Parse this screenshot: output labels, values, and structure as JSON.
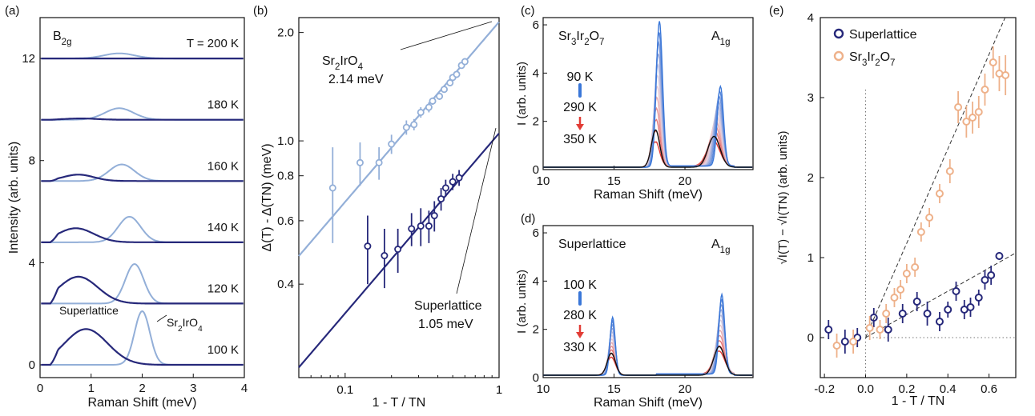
{
  "colors": {
    "dark": "#26287a",
    "light": "#93afd8",
    "orange": "#eeb18a",
    "blue": "#3a77d8",
    "red": "#e23c35",
    "black": "#111111"
  },
  "chart_data": [
    {
      "panel": "(a)",
      "type": "line",
      "xlabel": "Raman Shift (meV)",
      "ylabel": "Intensity (arb. units)",
      "xlim": [
        0,
        4
      ],
      "ylim": [
        -0.5,
        13.6
      ],
      "xticks": [
        "0",
        "1",
        "2",
        "3",
        "4"
      ],
      "yticks": [
        "0",
        "4",
        "8",
        "12"
      ],
      "symmetry_label": "B2g",
      "series_labels": [
        "Superlattice",
        "Sr2IrO4"
      ],
      "traces": [
        {
          "temp": "T = 200 K",
          "offset": 12.0,
          "light": {
            "center": 1.55,
            "amp": 0.2,
            "width": 0.3
          },
          "dark": {
            "center": 0.8,
            "amp": 0.0,
            "width": 0.3
          }
        },
        {
          "temp": "180 K",
          "offset": 9.6,
          "light": {
            "center": 1.55,
            "amp": 0.45,
            "width": 0.28
          },
          "dark": {
            "center": 0.8,
            "amp": 0.05,
            "width": 0.3
          }
        },
        {
          "temp": "160 K",
          "offset": 7.2,
          "light": {
            "center": 1.6,
            "amp": 0.65,
            "width": 0.25
          },
          "dark": {
            "center": 0.75,
            "amp": 0.25,
            "width": 0.3
          }
        },
        {
          "temp": "140 K",
          "offset": 4.8,
          "light": {
            "center": 1.75,
            "amp": 1.0,
            "width": 0.22
          },
          "dark": {
            "center": 0.7,
            "amp": 0.55,
            "width": 0.35
          }
        },
        {
          "temp": "120 K",
          "offset": 2.4,
          "light": {
            "center": 1.85,
            "amp": 1.55,
            "width": 0.18
          },
          "dark": {
            "center": 0.75,
            "amp": 1.05,
            "width": 0.38
          }
        },
        {
          "temp": "100 K",
          "offset": 0.0,
          "light": {
            "center": 2.0,
            "amp": 2.1,
            "width": 0.15
          },
          "dark": {
            "center": 0.9,
            "amp": 1.4,
            "width": 0.42
          }
        }
      ]
    },
    {
      "panel": "(b)",
      "type": "scatter",
      "scale": "log-log",
      "xlabel": "1 - T / TN",
      "ylabel": "Δ(T) - Δ(TN) (meV)",
      "xlim": [
        0.05,
        1.0
      ],
      "ylim": [
        0.22,
        2.2
      ],
      "xticks": [
        "0.1",
        "1"
      ],
      "yticks": [
        "0.4",
        "0.6",
        "0.8",
        "1.0",
        "2.0"
      ],
      "series": [
        {
          "name": "Sr2IrO4",
          "annotation": "2.14 meV",
          "color": "light",
          "fit": {
            "amp": 2.14,
            "exp": 0.5
          },
          "x": [
            0.083,
            0.125,
            0.166,
            0.2,
            0.25,
            0.28,
            0.31,
            0.35,
            0.37,
            0.41,
            0.44,
            0.48,
            0.5,
            0.53,
            0.57,
            0.6
          ],
          "y": [
            0.74,
            0.87,
            0.87,
            0.98,
            1.09,
            1.11,
            1.2,
            1.24,
            1.29,
            1.33,
            1.39,
            1.45,
            1.5,
            1.53,
            1.62,
            1.66
          ],
          "err": [
            0.22,
            0.12,
            0.09,
            0.06,
            0.05,
            0.04,
            0.04,
            0.04,
            0.03,
            0.03,
            0.03,
            0.03,
            0.03,
            0.03,
            0.03,
            0.03
          ]
        },
        {
          "name": "Superlattice",
          "annotation": "1.05 meV",
          "color": "dark",
          "fit": {
            "amp": 1.05,
            "exp": 0.5
          },
          "x": [
            0.14,
            0.18,
            0.22,
            0.27,
            0.31,
            0.35,
            0.38,
            0.42,
            0.45,
            0.5,
            0.55
          ],
          "y": [
            0.51,
            0.48,
            0.5,
            0.57,
            0.58,
            0.58,
            0.62,
            0.69,
            0.74,
            0.77,
            0.79
          ],
          "err": [
            0.11,
            0.09,
            0.07,
            0.06,
            0.07,
            0.06,
            0.06,
            0.05,
            0.04,
            0.04,
            0.04
          ]
        }
      ]
    },
    {
      "panel": "(c)",
      "type": "line",
      "sample": "Sr3Ir2O7",
      "mode": "A1g",
      "xlabel": "Raman Shift (meV)",
      "ylabel": "I (arb. units)",
      "xlim": [
        10,
        24.8
      ],
      "ylim": [
        0,
        6.3
      ],
      "xticks": [
        "10",
        "15",
        "20"
      ],
      "yticks": [
        "0",
        "2",
        "4",
        "6"
      ],
      "temps": [
        "90 K",
        "290 K",
        "350 K"
      ],
      "peaks_low_T": [
        {
          "center": 18.2,
          "amp": 6.0,
          "width": 0.22
        },
        {
          "center": 22.5,
          "amp": 3.3,
          "width": 0.22
        }
      ],
      "peaks_high_T": [
        {
          "center": 17.9,
          "amp": 1.05,
          "width": 0.3
        },
        {
          "center": 22.0,
          "amp": 1.05,
          "width": 0.45
        }
      ]
    },
    {
      "panel": "(d)",
      "type": "line",
      "sample": "Superlattice",
      "mode": "A1g",
      "xlabel": "Raman Shift (meV)",
      "ylabel": "I (arb. units)",
      "xlim": [
        10,
        24.8
      ],
      "ylim": [
        0,
        6.3
      ],
      "xticks": [
        "10",
        "15",
        "20"
      ],
      "yticks": [
        "0",
        "2",
        "4",
        "6"
      ],
      "temps": [
        "100 K",
        "280 K",
        "330 K"
      ],
      "peaks_low_T": [
        {
          "center": 14.9,
          "amp": 2.4,
          "width": 0.18
        },
        {
          "center": 22.6,
          "amp": 3.3,
          "width": 0.2
        }
      ],
      "peaks_high_T": [
        {
          "center": 14.8,
          "amp": 0.75,
          "width": 0.3
        },
        {
          "center": 22.4,
          "amp": 0.95,
          "width": 0.4
        }
      ]
    },
    {
      "panel": "(e)",
      "type": "scatter",
      "xlabel": "1 - T / TN",
      "ylabel": "√I(T) − √I(TN) (arb. units)",
      "xlim": [
        -0.22,
        0.73
      ],
      "ylim": [
        -0.5,
        4.0
      ],
      "xticks": [
        "-0.2",
        "0.0",
        "0.2",
        "0.4",
        "0.6"
      ],
      "yticks": [
        "0",
        "1",
        "2",
        "3",
        "4"
      ],
      "series": [
        {
          "name": "Superlattice",
          "color": "dark",
          "fit": {
            "slope": 1.45,
            "from": 0.0
          },
          "x": [
            -0.18,
            -0.1,
            -0.04,
            0.04,
            0.11,
            0.18,
            0.25,
            0.3,
            0.36,
            0.4,
            0.44,
            0.48,
            0.51,
            0.55,
            0.58,
            0.61,
            0.65
          ],
          "y": [
            0.1,
            -0.05,
            0.0,
            0.25,
            0.1,
            0.3,
            0.45,
            0.3,
            0.2,
            0.35,
            0.58,
            0.35,
            0.38,
            0.5,
            0.72,
            0.78,
            1.02
          ],
          "err": [
            0.12,
            0.15,
            0.12,
            0.12,
            0.15,
            0.12,
            0.12,
            0.15,
            0.12,
            0.1,
            0.12,
            0.12,
            0.12,
            0.1,
            0.12,
            0.12,
            0.05
          ]
        },
        {
          "name": "Sr3Ir2O7",
          "color": "orange",
          "fit": {
            "slope": 5.9,
            "from": 0.0
          },
          "x": [
            -0.14,
            -0.06,
            0.02,
            0.07,
            0.1,
            0.14,
            0.17,
            0.2,
            0.24,
            0.27,
            0.31,
            0.36,
            0.41,
            0.45,
            0.49,
            0.52,
            0.55,
            0.58,
            0.62,
            0.65,
            0.68
          ],
          "y": [
            -0.1,
            -0.05,
            0.12,
            0.1,
            0.3,
            0.5,
            0.6,
            0.8,
            0.88,
            1.32,
            1.5,
            1.8,
            2.08,
            2.88,
            2.7,
            2.75,
            2.82,
            3.1,
            3.44,
            3.3,
            3.28
          ],
          "err": [
            0.15,
            0.15,
            0.15,
            0.12,
            0.12,
            0.12,
            0.12,
            0.12,
            0.12,
            0.12,
            0.12,
            0.12,
            0.15,
            0.2,
            0.2,
            0.2,
            0.2,
            0.2,
            0.2,
            0.22,
            0.25
          ]
        }
      ]
    }
  ]
}
